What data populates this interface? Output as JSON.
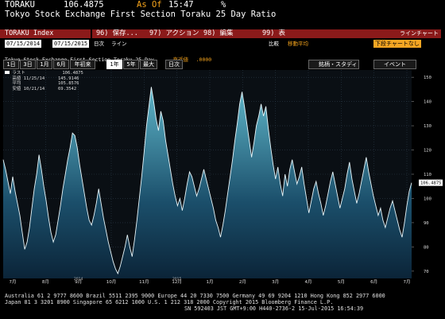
{
  "header": {
    "ticker": "TORAKU",
    "price": "106.4875",
    "as_of_label": "As Of",
    "as_of_time": "15:47",
    "percent_icon": "%",
    "chart_title": "Tokyo Stock Exchange First Section Toraku 25 Day Ratio"
  },
  "toolbar": {
    "index_name": "TORAKU Index",
    "menu": [
      "96) 保存...",
      "97) アクション",
      "98) 編集",
      "99) 表"
    ],
    "right_tab": "ラインチャート"
  },
  "daterow": {
    "start_date": "07/15/2014",
    "end_date": "07/15/2015",
    "freq_label": "日次",
    "line_label": "ライン",
    "compare_label": "比較",
    "ma_label": "移動平均",
    "lower_label": "下段チャートなし"
  },
  "subtitle": {
    "text": "Tokyo Stock Exchange First Section Toraku 25 Day",
    "recent_label": "直近値",
    "recent_value": ".0000"
  },
  "periods": {
    "tabs": [
      "1日",
      "3日",
      "1月",
      "6月",
      "年初来",
      "1年",
      "5年",
      "最大"
    ],
    "selected": "1年",
    "freq": "日次",
    "table_label": "銘柄・スタディ",
    "event_label": "イベント"
  },
  "legend": {
    "rows": [
      {
        "label": "ラスト",
        "date": "",
        "value": "106.4875"
      },
      {
        "label": "高値",
        "date": "11/25/14",
        "value": "145.9146"
      },
      {
        "label": "平均",
        "date": "",
        "value": "105.8576"
      },
      {
        "label": "安値",
        "date": "10/21/14",
        "value": "69.3542"
      }
    ]
  },
  "footer": {
    "line1": "Australia 61 2 9777 8600  Brazil 5511 2395 9000  Europe 44 20 7330 7500  Germany 49 69 9204 1210  Hong Kong 852 2977 6000",
    "line2": "Japan 81 3 3201 8900         Singapore 65 6212 1000         U.S. 1 212 318 2000          Copyright 2015 Bloomberg Finance L.P.",
    "line3": "SN 592403 JST  GMT+9:00 H440-2736-2 15-Jul-2015 16:54:39"
  },
  "colors": {
    "accent_amber": "#f7a51c",
    "chart_fill_top": "#5fb6c9",
    "chart_fill_bottom": "#0c2a3e",
    "last_badge": "#ffffff"
  },
  "chart_data": {
    "type": "area",
    "x_labels": [
      "7月",
      "8月",
      "9月",
      "10月",
      "11月",
      "12月",
      "1月",
      "2月",
      "3月",
      "4月",
      "5月",
      "6月",
      "7月"
    ],
    "year_labels": [
      {
        "after_month": "9月",
        "text": "2014"
      },
      {
        "after_month": "12月",
        "text": "2015"
      }
    ],
    "y_ticks": [
      70,
      80,
      90,
      100,
      110,
      120,
      130,
      140,
      150
    ],
    "ylim": [
      67,
      153
    ],
    "y_axis_side": "right",
    "last_value": 106.4875,
    "last_label": "106.4875",
    "series": [
      {
        "values": [
          116,
          112,
          107,
          102,
          109,
          103,
          98,
          93,
          86,
          79,
          82,
          88,
          96,
          104,
          110,
          118,
          112,
          105,
          99,
          92,
          86,
          82,
          85,
          91,
          97,
          104,
          110,
          116,
          121,
          127,
          126,
          121,
          114,
          108,
          102,
          96,
          91,
          89,
          93,
          98,
          104,
          98,
          92,
          87,
          82,
          78,
          74,
          71,
          69,
          72,
          76,
          80,
          85,
          80,
          76,
          83,
          91,
          100,
          109,
          119,
          130,
          138,
          146,
          140,
          133,
          128,
          136,
          132,
          124,
          118,
          112,
          106,
          101,
          97,
          100,
          95,
          100,
          106,
          111,
          109,
          105,
          101,
          104,
          108,
          112,
          108,
          104,
          100,
          96,
          91,
          88,
          84,
          89,
          95,
          102,
          109,
          116,
          124,
          131,
          139,
          144,
          138,
          131,
          124,
          117,
          123,
          130,
          134,
          139,
          134,
          138,
          129,
          121,
          114,
          108,
          113,
          106,
          101,
          110,
          105,
          112,
          116,
          111,
          106,
          109,
          113,
          106,
          100,
          94,
          99,
          104,
          107,
          102,
          98,
          93,
          97,
          102,
          107,
          111,
          106,
          101,
          96,
          100,
          104,
          110,
          115,
          108,
          103,
          98,
          102,
          107,
          112,
          117,
          111,
          106,
          101,
          97,
          93,
          96,
          91,
          88,
          92,
          96,
          99,
          95,
          91,
          87,
          84,
          90,
          97,
          103,
          106.49
        ]
      }
    ]
  }
}
